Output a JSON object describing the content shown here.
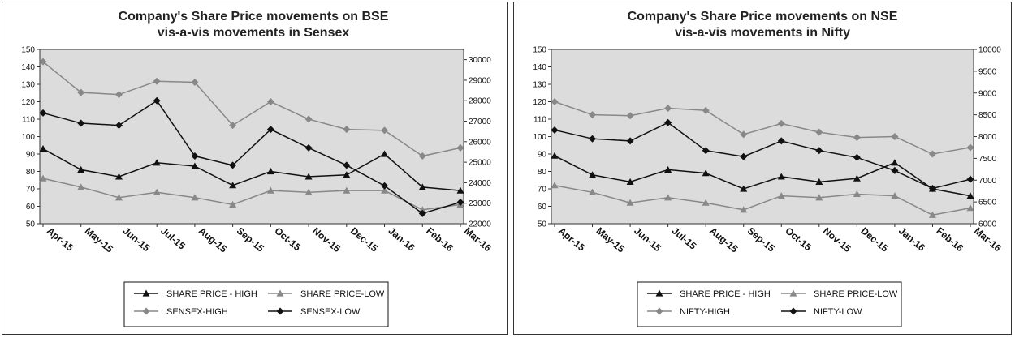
{
  "chart_data": [
    {
      "type": "line",
      "title_line1": "Company's Share Price movements on BSE",
      "title_line2": "vis-a-vis movements in Sensex",
      "categories": [
        "Apr-15",
        "May-15",
        "Jun-15",
        "Jul-15",
        "Aug-15",
        "Sep-15",
        "Oct-15",
        "Nov-15",
        "Dec-15",
        "Jan-16",
        "Feb-16",
        "Mar-16"
      ],
      "ylim_left": [
        50,
        150
      ],
      "yticks_left": [
        "50",
        "60",
        "70",
        "80",
        "90",
        "100",
        "110",
        "120",
        "130",
        "140",
        "150"
      ],
      "ylim_right": [
        22000,
        30500
      ],
      "yticks_right": [
        "22000",
        "23000",
        "24000",
        "25000",
        "26000",
        "27000",
        "28000",
        "29000",
        "30000"
      ],
      "grid": false,
      "legend_position": "bottom",
      "series": [
        {
          "name": "SHARE PRICE - HIGH",
          "axis": "left",
          "marker": "triangle",
          "color": "#111111",
          "values": [
            93,
            81,
            77,
            85,
            83,
            72,
            80,
            77,
            78,
            90,
            71,
            69
          ]
        },
        {
          "name": "SHARE PRICE-LOW",
          "axis": "left",
          "marker": "triangle",
          "color": "#888888",
          "values": [
            76,
            71,
            65,
            68,
            65,
            61,
            69,
            68,
            69,
            69,
            58,
            61
          ]
        },
        {
          "name": "SENSEX-HIGH",
          "axis": "right",
          "marker": "diamond",
          "color": "#888888",
          "values": [
            29900,
            28400,
            28300,
            28950,
            28900,
            26800,
            27950,
            27100,
            26600,
            26550,
            25300,
            25700
          ]
        },
        {
          "name": "SENSEX-LOW",
          "axis": "right",
          "marker": "diamond",
          "color": "#111111",
          "values": [
            27400,
            26900,
            26800,
            28000,
            25300,
            24850,
            26600,
            25700,
            24850,
            23850,
            22500,
            23050
          ]
        }
      ]
    },
    {
      "type": "line",
      "title_line1": "Company's Share Price movements on NSE",
      "title_line2": "vis-a-vis movements in Nifty",
      "categories": [
        "Apr-15",
        "May-15",
        "Jun-15",
        "Jul-15",
        "Aug-15",
        "Sep-15",
        "Oct-15",
        "Nov-15",
        "Dec-15",
        "Jan-16",
        "Feb-16",
        "Mar-16"
      ],
      "ylim_left": [
        50,
        150
      ],
      "yticks_left": [
        "50",
        "60",
        "70",
        "80",
        "90",
        "100",
        "110",
        "120",
        "130",
        "140",
        "150"
      ],
      "ylim_right": [
        6000,
        10000
      ],
      "yticks_right": [
        "6000",
        "6500",
        "7000",
        "7500",
        "8000",
        "8500",
        "9000",
        "9500",
        "10000"
      ],
      "grid": false,
      "legend_position": "bottom",
      "series": [
        {
          "name": "SHARE PRICE - HIGH",
          "axis": "left",
          "marker": "triangle",
          "color": "#111111",
          "values": [
            89,
            78,
            74,
            81,
            79,
            70,
            77,
            74,
            76,
            85,
            70,
            66
          ]
        },
        {
          "name": "SHARE PRICE-LOW",
          "axis": "left",
          "marker": "triangle",
          "color": "#888888",
          "values": [
            72,
            68,
            62,
            65,
            62,
            58,
            66,
            65,
            67,
            66,
            55,
            59
          ]
        },
        {
          "name": "NIFTY-HIGH",
          "axis": "right",
          "marker": "diamond",
          "color": "#888888",
          "values": [
            8800,
            8500,
            8480,
            8650,
            8600,
            8050,
            8300,
            8100,
            7980,
            8000,
            7600,
            7750
          ]
        },
        {
          "name": "NIFTY-LOW",
          "axis": "right",
          "marker": "diamond",
          "color": "#111111",
          "values": [
            8150,
            7950,
            7900,
            8320,
            7680,
            7540,
            7900,
            7680,
            7520,
            7220,
            6810,
            7020
          ]
        }
      ]
    }
  ]
}
